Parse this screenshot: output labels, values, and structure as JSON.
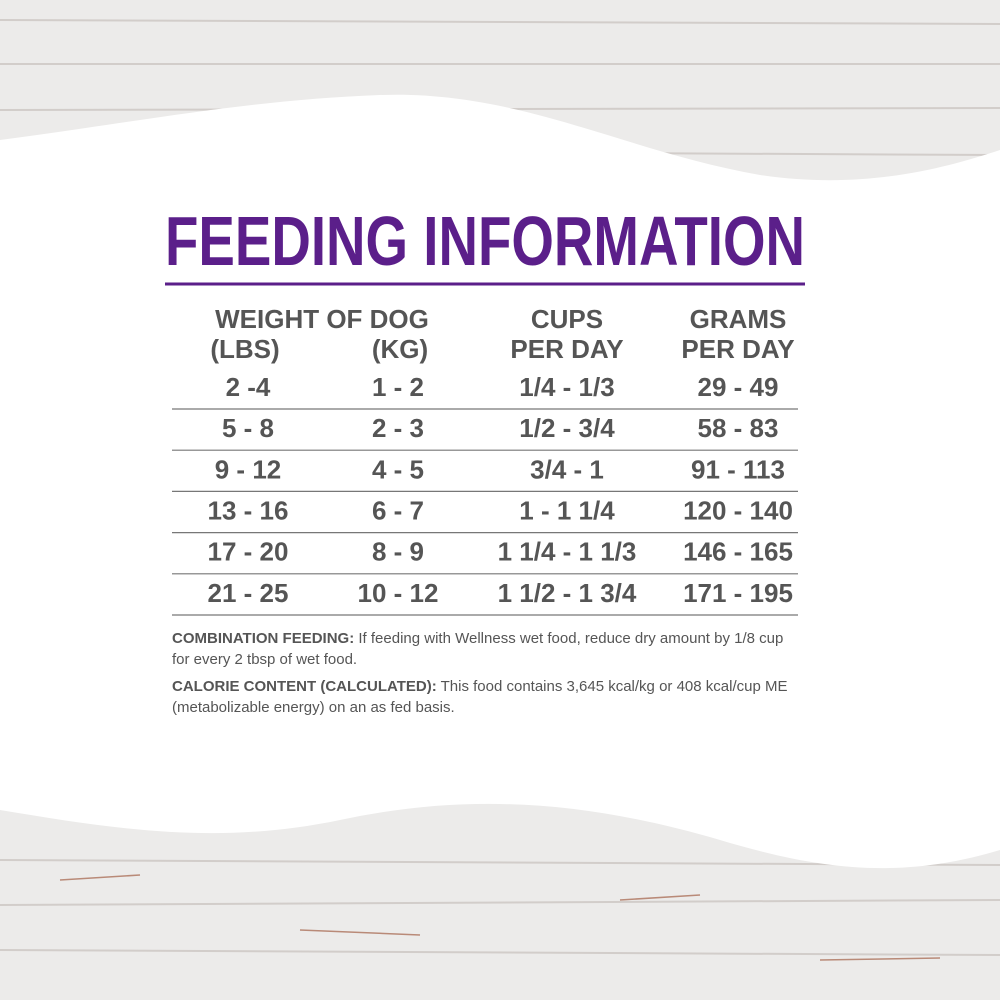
{
  "title": "FEEDING INFORMATION",
  "table": {
    "headers": {
      "group": "WEIGHT OF DOG",
      "lbs": "(LBS)",
      "kg": "(KG)",
      "cups": [
        "CUPS",
        "PER DAY"
      ],
      "grams": [
        "GRAMS",
        "PER DAY"
      ]
    },
    "rows": [
      [
        "2 -4",
        "1 - 2",
        "1/4 - 1/3",
        "29 - 49"
      ],
      [
        "5 - 8",
        "2 - 3",
        "1/2 - 3/4",
        "58 - 83"
      ],
      [
        "9 - 12",
        "4 - 5",
        "3/4 - 1",
        "91 - 113"
      ],
      [
        "13 - 16",
        "6 - 7",
        "1 - 1 1/4",
        "120 - 140"
      ],
      [
        "17 - 20",
        "8 - 9",
        "1 1/4 - 1 1/3",
        "146 - 165"
      ],
      [
        "21 - 25",
        "10 - 12",
        "1 1/2 - 1 3/4",
        "171 - 195"
      ]
    ]
  },
  "notes": [
    {
      "label": "COMBINATION FEEDING:",
      "text": "If feeding with Wellness wet food, reduce dry amount by 1/8 cup for every 2 tbsp of wet food."
    },
    {
      "label": "CALORIE CONTENT (CALCULATED):",
      "text": "This food contains 3,645 kcal/kg or 408 kcal/cup ME (metabolizable energy) on an as fed basis."
    }
  ]
}
